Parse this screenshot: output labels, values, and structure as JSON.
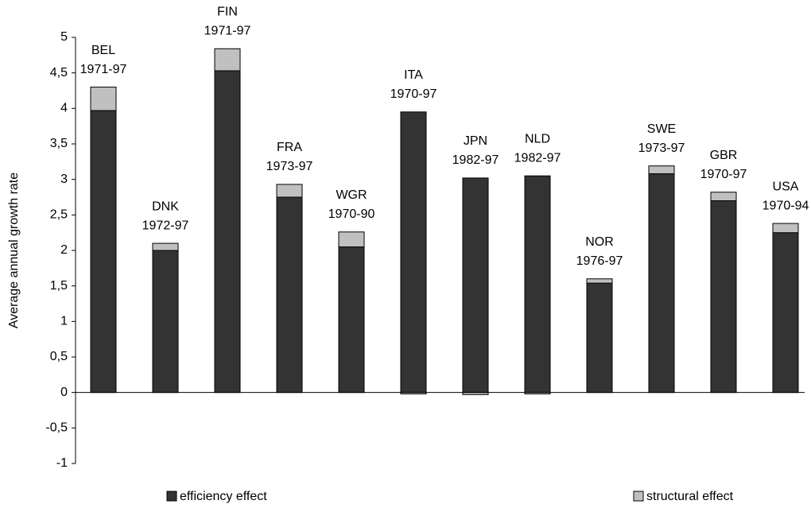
{
  "chart_data": {
    "type": "stacked-bar",
    "y_label": "Average annual growth rate",
    "categories": [
      "BEL",
      "DNK",
      "FIN",
      "FRA",
      "WGR",
      "ITA",
      "JPN",
      "NLD",
      "NOR",
      "SWE",
      "GBR",
      "USA"
    ],
    "periods": [
      "1971-97",
      "1972-97",
      "1971-97",
      "1973-97",
      "1970-90",
      "1970-97",
      "1982-97",
      "1982-97",
      "1976-97",
      "1973-97",
      "1970-97",
      "1970-94"
    ],
    "series": [
      {
        "name": "efficiency effect",
        "color": "#333333",
        "values": [
          3.97,
          2.0,
          4.53,
          2.75,
          2.05,
          3.95,
          3.02,
          3.05,
          1.54,
          3.08,
          2.7,
          2.25
        ]
      },
      {
        "name": "structural effect",
        "color": "#c0c0c0",
        "values": [
          0.33,
          0.1,
          0.31,
          0.18,
          0.21,
          -0.02,
          -0.03,
          -0.02,
          0.06,
          0.11,
          0.12,
          0.13
        ]
      }
    ],
    "ylim": [
      -1,
      5
    ],
    "yticks": [
      -1,
      {
        "value": -0.5,
        "label": "-0,5"
      },
      0,
      {
        "value": 0.5,
        "label": "0,5"
      },
      1,
      {
        "value": 1.5,
        "label": "1,5"
      },
      2,
      {
        "value": 2.5,
        "label": "2,5"
      },
      3,
      {
        "value": 3.5,
        "label": "3,5"
      },
      4,
      {
        "value": 4.5,
        "label": "4,5"
      },
      5
    ]
  }
}
